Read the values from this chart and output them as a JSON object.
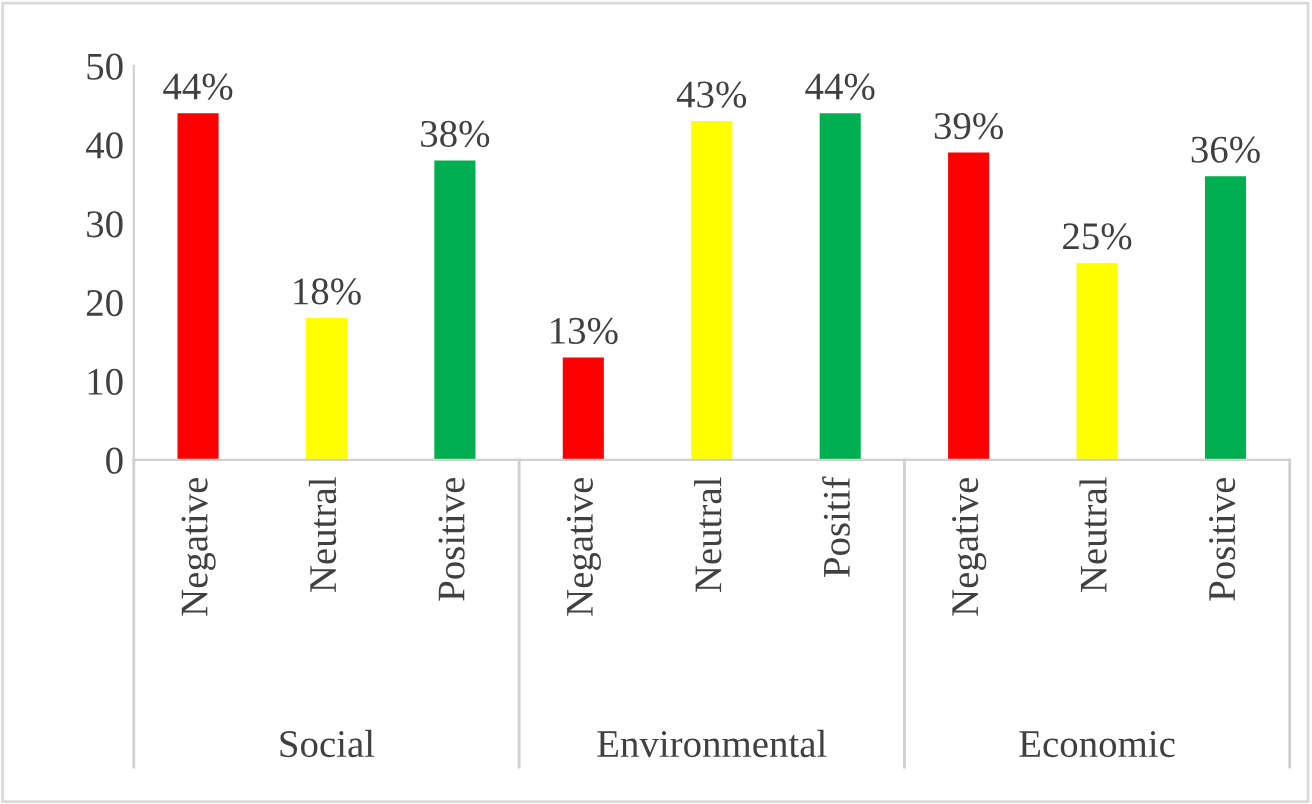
{
  "chart_data": {
    "type": "bar",
    "categories": [
      "Negative",
      "Neutral",
      "Positive",
      "Negative",
      "Neutral",
      "Positif",
      "Negative",
      "Neutral",
      "Positive"
    ],
    "values": [
      44,
      18,
      38,
      13,
      43,
      44,
      39,
      25,
      36
    ],
    "colors": [
      "#ff0000",
      "#ffff00",
      "#00b050",
      "#ff0000",
      "#ffff00",
      "#00b050",
      "#ff0000",
      "#ffff00",
      "#00b050"
    ],
    "value_labels": [
      "44%",
      "18%",
      "38%",
      "13%",
      "43%",
      "44%",
      "39%",
      "25%",
      "36%"
    ],
    "annotations": [
      "Social",
      "Environmental",
      "Economic"
    ],
    "ylim": [
      0,
      50
    ],
    "yticks": [
      0,
      10,
      20,
      30,
      40,
      50
    ],
    "grid": false,
    "legend": false
  }
}
